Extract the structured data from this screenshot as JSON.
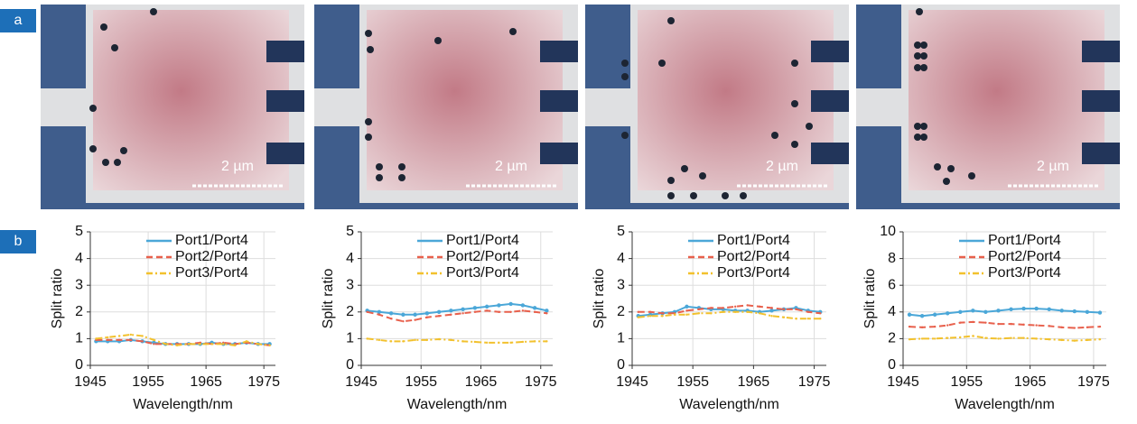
{
  "panel_labels": [
    "a",
    "b"
  ],
  "images": [
    {
      "scale_bar": "2 µm"
    },
    {
      "scale_bar": "2 µm"
    },
    {
      "scale_bar": "2 µm"
    },
    {
      "scale_bar": "2 µm"
    }
  ],
  "chart_data": [
    {
      "type": "line",
      "xlabel": "Wavelength/nm",
      "ylabel": "Split ratio",
      "x": [
        1946,
        1948,
        1950,
        1952,
        1954,
        1956,
        1958,
        1960,
        1962,
        1964,
        1966,
        1968,
        1970,
        1972,
        1974,
        1976
      ],
      "xlim": [
        1945,
        1977
      ],
      "xticks": [
        1945,
        1955,
        1965,
        1975
      ],
      "ylim": [
        0,
        5
      ],
      "yticks": [
        0,
        1,
        2,
        3,
        4,
        5
      ],
      "grid": true,
      "series": [
        {
          "name": "Port1/Port4",
          "color": "#4ba7d8",
          "line_style": "solid",
          "values": [
            0.9,
            0.9,
            0.9,
            0.95,
            0.9,
            0.85,
            0.8,
            0.8,
            0.8,
            0.8,
            0.85,
            0.8,
            0.8,
            0.85,
            0.8,
            0.8
          ]
        },
        {
          "name": "Port2/Port4",
          "color": "#e8604c",
          "line_style": "dashed",
          "values": [
            0.95,
            0.95,
            0.95,
            0.95,
            0.9,
            0.8,
            0.8,
            0.8,
            0.8,
            0.85,
            0.8,
            0.85,
            0.8,
            0.85,
            0.8,
            0.75
          ]
        },
        {
          "name": "Port3/Port4",
          "color": "#f2c12e",
          "line_style": "dashdot",
          "values": [
            1.0,
            1.05,
            1.1,
            1.15,
            1.1,
            0.95,
            0.8,
            0.75,
            0.8,
            0.8,
            0.8,
            0.8,
            0.75,
            0.9,
            0.8,
            0.75
          ]
        }
      ]
    },
    {
      "type": "line",
      "xlabel": "Wavelength/nm",
      "ylabel": "Split ratio",
      "x": [
        1946,
        1948,
        1950,
        1952,
        1954,
        1956,
        1958,
        1960,
        1962,
        1964,
        1966,
        1968,
        1970,
        1972,
        1974,
        1976
      ],
      "xlim": [
        1945,
        1977
      ],
      "xticks": [
        1945,
        1955,
        1965,
        1975
      ],
      "ylim": [
        0,
        5
      ],
      "yticks": [
        0,
        1,
        2,
        3,
        4,
        5
      ],
      "grid": true,
      "series": [
        {
          "name": "Port1/Port4",
          "color": "#4ba7d8",
          "line_style": "solid",
          "values": [
            2.05,
            2.0,
            1.95,
            1.9,
            1.9,
            1.95,
            2.0,
            2.05,
            2.1,
            2.15,
            2.2,
            2.25,
            2.3,
            2.25,
            2.15,
            2.05
          ]
        },
        {
          "name": "Port2/Port4",
          "color": "#e8604c",
          "line_style": "dashed",
          "values": [
            2.0,
            1.9,
            1.75,
            1.65,
            1.7,
            1.8,
            1.85,
            1.9,
            1.95,
            2.0,
            2.05,
            2.0,
            2.0,
            2.05,
            2.0,
            1.95
          ]
        },
        {
          "name": "Port3/Port4",
          "color": "#f2c12e",
          "line_style": "dashdot",
          "values": [
            1.0,
            0.95,
            0.9,
            0.9,
            0.95,
            0.95,
            0.98,
            0.95,
            0.9,
            0.88,
            0.85,
            0.85,
            0.85,
            0.88,
            0.9,
            0.9
          ]
        }
      ]
    },
    {
      "type": "line",
      "xlabel": "Wavelength/nm",
      "ylabel": "Split ratio",
      "x": [
        1946,
        1948,
        1950,
        1952,
        1954,
        1956,
        1958,
        1960,
        1962,
        1964,
        1966,
        1968,
        1970,
        1972,
        1974,
        1976
      ],
      "xlim": [
        1945,
        1977
      ],
      "xticks": [
        1945,
        1955,
        1965,
        1975
      ],
      "ylim": [
        0,
        5
      ],
      "yticks": [
        0,
        1,
        2,
        3,
        4,
        5
      ],
      "grid": true,
      "series": [
        {
          "name": "Port1/Port4",
          "color": "#4ba7d8",
          "line_style": "solid",
          "values": [
            1.85,
            1.9,
            1.95,
            2.0,
            2.2,
            2.15,
            2.1,
            2.1,
            2.05,
            2.05,
            2.0,
            2.05,
            2.1,
            2.15,
            2.05,
            2.0
          ]
        },
        {
          "name": "Port2/Port4",
          "color": "#e8604c",
          "line_style": "dashed",
          "values": [
            2.0,
            2.0,
            1.95,
            1.95,
            2.05,
            2.1,
            2.15,
            2.15,
            2.2,
            2.25,
            2.2,
            2.15,
            2.1,
            2.1,
            2.0,
            1.95
          ]
        },
        {
          "name": "Port3/Port4",
          "color": "#f2c12e",
          "line_style": "dashdot",
          "values": [
            1.8,
            1.85,
            1.85,
            1.9,
            1.9,
            1.95,
            1.95,
            2.0,
            2.0,
            2.0,
            1.95,
            1.85,
            1.8,
            1.75,
            1.75,
            1.75
          ]
        }
      ]
    },
    {
      "type": "line",
      "xlabel": "Wavelength/nm",
      "ylabel": "Split ratio",
      "x": [
        1946,
        1948,
        1950,
        1952,
        1954,
        1956,
        1958,
        1960,
        1962,
        1964,
        1966,
        1968,
        1970,
        1972,
        1974,
        1976
      ],
      "xlim": [
        1945,
        1977
      ],
      "xticks": [
        1945,
        1955,
        1965,
        1975
      ],
      "ylim": [
        0,
        10
      ],
      "yticks": [
        0,
        2,
        4,
        6,
        8,
        10
      ],
      "grid": true,
      "series": [
        {
          "name": "Port1/Port4",
          "color": "#4ba7d8",
          "line_style": "solid",
          "values": [
            3.8,
            3.7,
            3.8,
            3.9,
            4.0,
            4.1,
            4.0,
            4.1,
            4.2,
            4.25,
            4.25,
            4.2,
            4.1,
            4.05,
            4.0,
            3.95
          ]
        },
        {
          "name": "Port2/Port4",
          "color": "#e8604c",
          "line_style": "dashed",
          "values": [
            2.9,
            2.85,
            2.9,
            3.0,
            3.2,
            3.25,
            3.2,
            3.1,
            3.1,
            3.05,
            3.0,
            2.95,
            2.85,
            2.8,
            2.85,
            2.9
          ]
        },
        {
          "name": "Port3/Port4",
          "color": "#f2c12e",
          "line_style": "dashdot",
          "values": [
            1.95,
            2.0,
            2.0,
            2.05,
            2.1,
            2.2,
            2.05,
            2.0,
            2.05,
            2.05,
            2.0,
            1.95,
            1.9,
            1.85,
            1.9,
            1.95
          ]
        }
      ]
    }
  ]
}
